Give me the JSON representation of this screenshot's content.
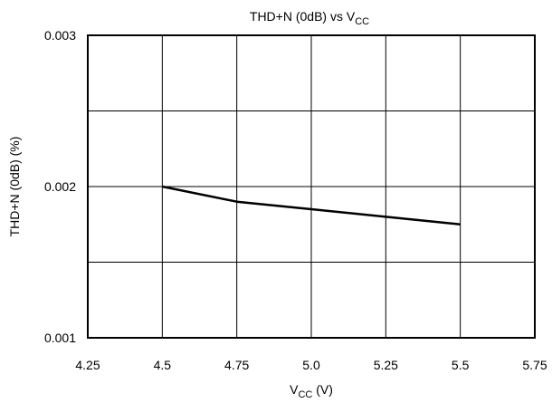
{
  "chart_data": {
    "type": "line",
    "title_main": "THD+N (0dB) vs V",
    "title_sub": "CC",
    "xlabel_main": "V",
    "xlabel_sub": "CC",
    "xlabel_suffix": " (V)",
    "ylabel": "THD+N (0dB) (%)",
    "xlim": [
      4.25,
      5.75
    ],
    "ylim": [
      0.001,
      0.003
    ],
    "x_ticks": [
      4.25,
      4.5,
      4.75,
      5.0,
      5.25,
      5.5,
      5.75
    ],
    "x_tick_labels": [
      "4.25",
      "4.5",
      "4.75",
      "5.0",
      "5.25",
      "5.5",
      "5.75"
    ],
    "y_tick_labels": [
      "0.001",
      "0.002",
      "0.003"
    ],
    "y_ticks_labeled": [
      0.001,
      0.002,
      0.003
    ],
    "y_grid": [
      0.0015,
      0.002,
      0.0025
    ],
    "grid": true,
    "series": [
      {
        "x": [
          4.5,
          4.75,
          5.0,
          5.25,
          5.5
        ],
        "y": [
          0.002,
          0.0019,
          0.00185,
          0.0018,
          0.00175
        ],
        "color": "#000000"
      }
    ]
  }
}
